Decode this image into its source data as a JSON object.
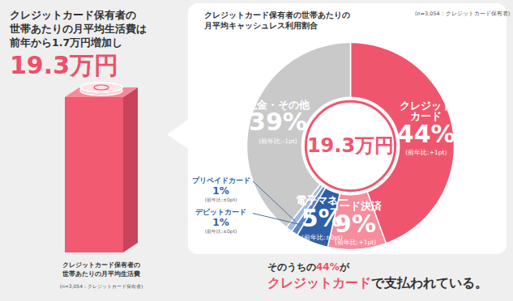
{
  "chart_data": {
    "type": "pie",
    "title": "クレジットカード保有者の世帯あたりの\n月平均キャッシュレス利用割合",
    "note": "(n=3,054：クレジットカード保有者)",
    "center_label": "19.3万円",
    "categories": [
      "クレジット\nカード",
      "コード決済",
      "電子マネー",
      "デビットカード",
      "プリペイドカード",
      "現金・その他"
    ],
    "values": [
      44,
      9,
      5,
      1,
      1,
      39
    ],
    "value_labels": [
      "44%",
      "9%",
      "5%",
      "1%",
      "1%",
      "39%"
    ],
    "change_labels": [
      "(前年比:+1pt)",
      "(前年比:+1pt)",
      "(前年比:±0pt)",
      "(前年比:±0pt)",
      "(前年比:±0pt)",
      "(前年比:-1pt)"
    ],
    "colors": [
      "#ef566d",
      "#f58d9c",
      "#2f5fa8",
      "#5b86c6",
      "#9db9e2",
      "#c9c9c9"
    ],
    "data_labels": true
  },
  "headline": {
    "lines": [
      "クレジットカード保有者の",
      "世帯あたりの月平均生活費は",
      "前年から1.7万円増加し"
    ],
    "value": "19.3万円"
  },
  "bar_caption": {
    "text": "クレジットカード保有者の\n世帯あたりの月平均生活費",
    "note": "(n=3,054：クレジットカード保有者)"
  },
  "conclusion": {
    "line1": [
      {
        "text": "そのうちの"
      },
      {
        "text": "44%",
        "color": "#ee4f6a"
      },
      {
        "text": "が"
      }
    ],
    "line2": [
      {
        "text": "クレジットカード",
        "color": "#ee4f6a"
      },
      {
        "text": "で支払われている。"
      }
    ]
  }
}
